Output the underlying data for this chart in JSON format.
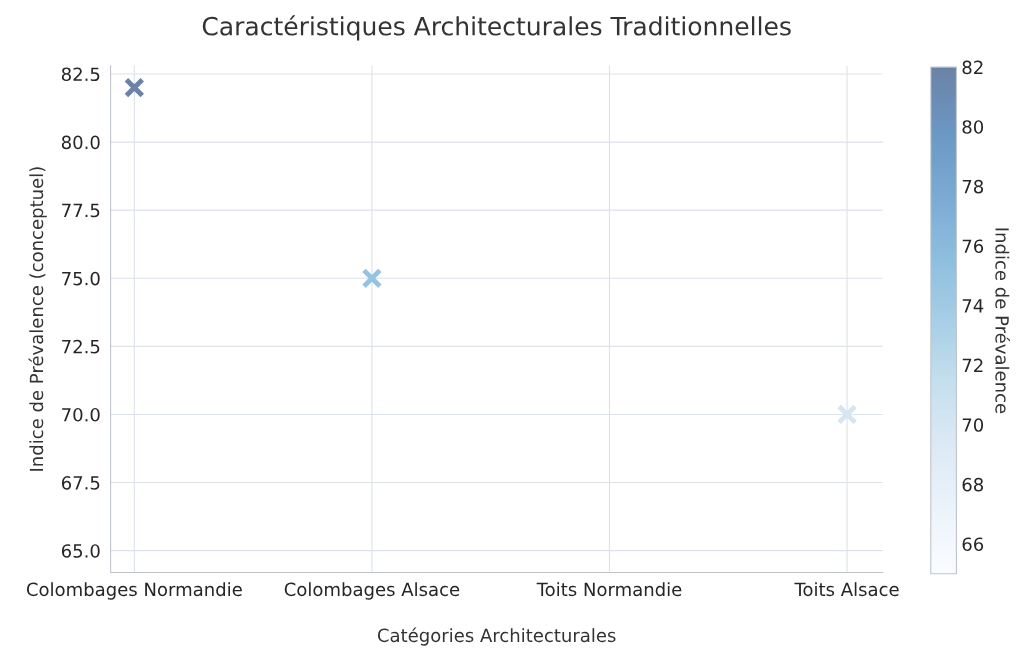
{
  "chart_data": {
    "type": "scatter",
    "title": "Caractéristiques Architecturales Traditionnelles",
    "xlabel": "Catégories Architecturales",
    "ylabel": "Indice de Prévalence (conceptuel)",
    "clabel": "Indice de Prévalence",
    "categories": [
      "Colombages Normandie",
      "Colombages Alsace",
      "Toits Normandie",
      "Toits Alsace"
    ],
    "values": [
      82,
      75,
      null,
      70
    ],
    "cvalues": [
      82,
      75,
      null,
      70
    ],
    "marker": "cross",
    "ylim": [
      64.2,
      82.8
    ],
    "yticks": [
      {
        "value": 65,
        "label": "65.0"
      },
      {
        "value": 67.5,
        "label": "67.5"
      },
      {
        "value": 70,
        "label": "70.0"
      },
      {
        "value": 72.5,
        "label": "72.5"
      },
      {
        "value": 75,
        "label": "75.0"
      },
      {
        "value": 77.5,
        "label": "77.5"
      },
      {
        "value": 80,
        "label": "80.0"
      },
      {
        "value": 82.5,
        "label": "82.5"
      }
    ],
    "clim": [
      65,
      82
    ],
    "cticks": [
      66,
      68,
      70,
      72,
      74,
      76,
      78,
      80,
      82
    ],
    "grid": true
  }
}
